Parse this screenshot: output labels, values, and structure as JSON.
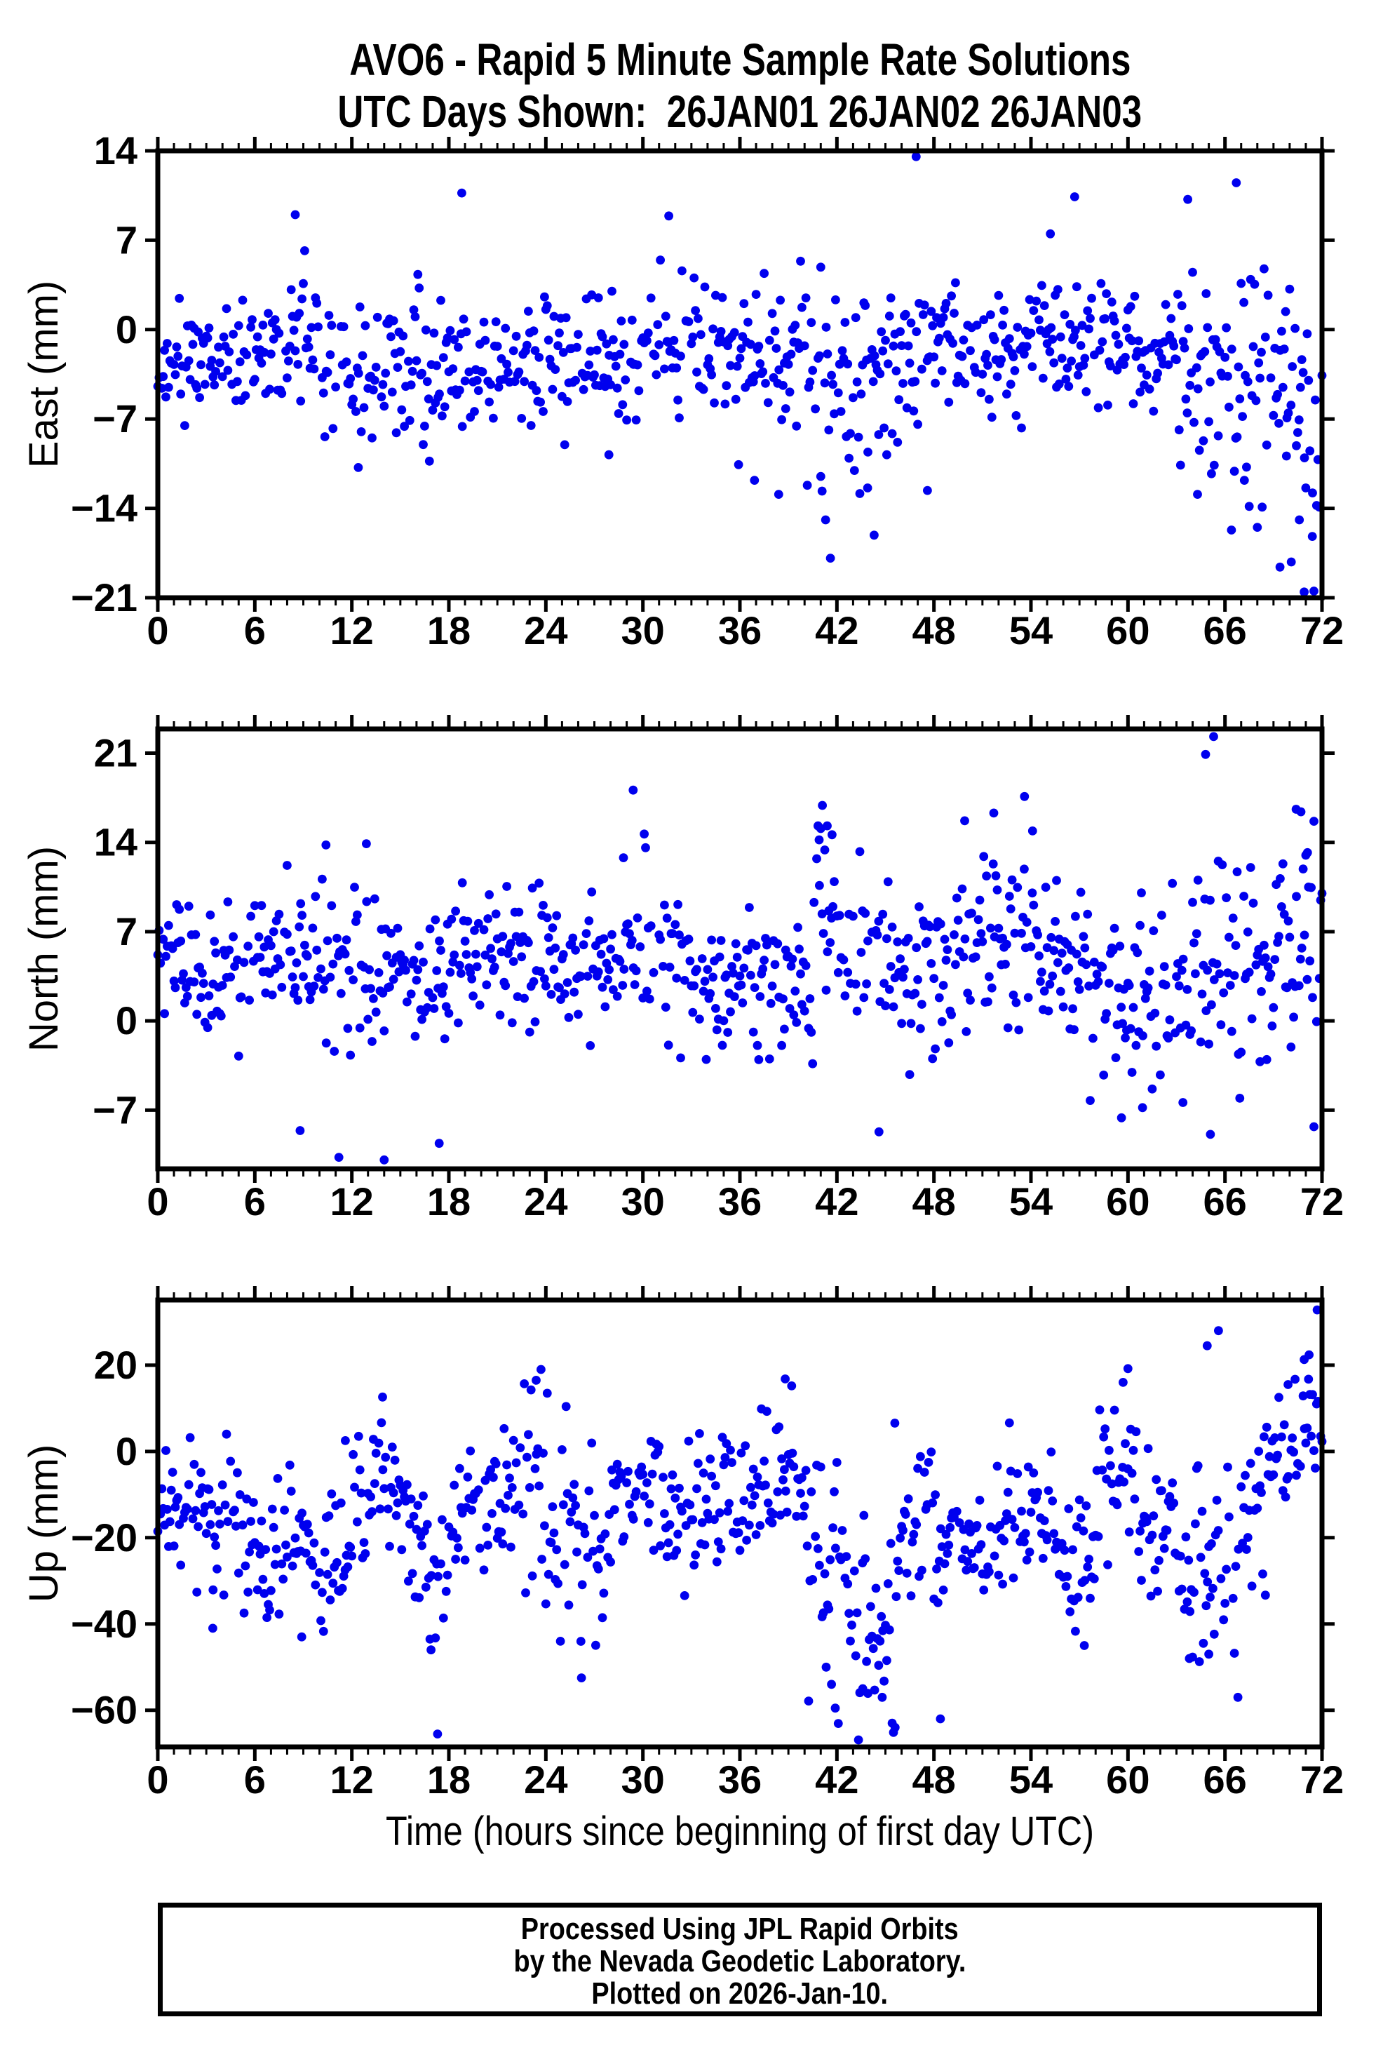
{
  "title": {
    "line1": "AVO6 - Rapid 5 Minute Sample Rate Solutions",
    "line2": "UTC Days Shown:  26JAN01 26JAN02 26JAN03"
  },
  "footer": {
    "line1": "Processed Using JPL Rapid Orbits",
    "line2": "by the Nevada Geodetic Laboratory.",
    "line3": "Plotted on 2026-Jan-10."
  },
  "style": {
    "point_color": "#0000ee",
    "axis_color": "#000000",
    "background": "#ffffff",
    "point_radius": 6.4
  },
  "station": "AVO6",
  "days_shown": [
    "26JAN01",
    "26JAN02",
    "26JAN03"
  ],
  "x_axis": {
    "title": "Time (hours since beginning of first day UTC)",
    "range": [
      0,
      72
    ],
    "major_tick_interval": 6,
    "minor_tick_interval": 1,
    "tick_labels": [
      0,
      6,
      12,
      18,
      24,
      30,
      36,
      42,
      48,
      54,
      60,
      66,
      72
    ]
  },
  "chart_data": [
    {
      "type": "scatter",
      "panel": "east",
      "ylabel": "East (mm)",
      "y_ticks": [
        14,
        7,
        0,
        -7,
        -14,
        -21
      ],
      "y_range": [
        -21,
        14
      ],
      "x_range": [
        0,
        72
      ],
      "sample_interval_hours": 0.083333,
      "gap_fraction": 0.1,
      "seed": 11,
      "summary": {
        "approx_mean": -2.3,
        "approx_sd": 2.8,
        "description": "5-min East offsets, mostly -8 to +5 mm; dips to -18 near hour 41-44; spread grows after hour 63 reaching -21"
      },
      "segments": [
        [
          0,
          8,
          -2.6,
          2.1
        ],
        [
          8,
          10,
          -0.8,
          2.6
        ],
        [
          10,
          13,
          -2.8,
          2.6
        ],
        [
          13,
          17,
          -3.8,
          2.8
        ],
        [
          17,
          20,
          -3.0,
          2.6
        ],
        [
          20,
          24,
          -2.6,
          2.4
        ],
        [
          24,
          27,
          -3.0,
          2.3
        ],
        [
          27,
          31,
          -1.8,
          2.6
        ],
        [
          31,
          34,
          -1.2,
          2.8
        ],
        [
          34,
          37,
          -2.6,
          2.3
        ],
        [
          37,
          40,
          -2.4,
          2.6
        ],
        [
          40,
          44,
          -4.2,
          4.2
        ],
        [
          44,
          46,
          -3.0,
          3.0
        ],
        [
          46,
          48,
          -1.8,
          2.8
        ],
        [
          48,
          52,
          -1.6,
          2.4
        ],
        [
          52,
          56,
          -1.4,
          2.6
        ],
        [
          56,
          60,
          -0.9,
          2.7
        ],
        [
          60,
          63,
          -1.6,
          2.4
        ],
        [
          63,
          67,
          -2.8,
          4.6
        ],
        [
          67,
          70,
          -3.5,
          5.5
        ],
        [
          70,
          72,
          -5.5,
          6.5
        ]
      ],
      "outliers": [
        [
          8.5,
          9.0
        ],
        [
          18.8,
          10.7
        ],
        [
          31.6,
          8.9
        ],
        [
          46.9,
          13.6
        ],
        [
          55.2,
          7.5
        ],
        [
          56.7,
          10.4
        ],
        [
          63.7,
          10.2
        ],
        [
          66.7,
          11.5
        ],
        [
          12.4,
          -10.8
        ],
        [
          16.8,
          -10.3
        ],
        [
          27.9,
          -9.8
        ],
        [
          36.9,
          -11.8
        ],
        [
          38.4,
          -12.9
        ],
        [
          41.0,
          -11.5
        ],
        [
          41.3,
          -14.9
        ],
        [
          41.6,
          -17.9
        ],
        [
          43.9,
          -12.4
        ],
        [
          44.3,
          -16.1
        ],
        [
          47.6,
          -12.6
        ],
        [
          64.3,
          -12.9
        ],
        [
          66.4,
          -15.7
        ],
        [
          68.3,
          -13.9
        ],
        [
          69.4,
          -18.6
        ],
        [
          70.1,
          -18.2
        ],
        [
          70.9,
          -20.7
        ],
        [
          71.4,
          -16.2
        ],
        [
          70.6,
          -14.9
        ],
        [
          69.8,
          -9.9
        ],
        [
          67.2,
          -11.8
        ]
      ]
    },
    {
      "type": "scatter",
      "panel": "north",
      "ylabel": "North (mm)",
      "y_ticks": [
        21,
        14,
        7,
        0,
        -7
      ],
      "y_range": [
        -11.6,
        22.9
      ],
      "x_range": [
        0,
        72
      ],
      "sample_interval_hours": 0.083333,
      "gap_fraction": 0.1,
      "seed": 22,
      "summary": {
        "approx_mean": 4.4,
        "approx_sd": 3.1,
        "description": "5-min North offsets, mostly -1 to +10 mm; spike cluster to ~17 near hour 41; highs to 22 near hour 65; lows to -11 near hours 11-18"
      },
      "segments": [
        [
          0,
          3,
          4.6,
          2.2
        ],
        [
          3,
          6,
          3.8,
          2.6
        ],
        [
          6,
          9,
          5.2,
          2.8
        ],
        [
          9,
          12,
          4.4,
          3.4
        ],
        [
          12,
          15,
          3.6,
          3.0
        ],
        [
          15,
          18,
          3.2,
          3.2
        ],
        [
          18,
          21,
          5.8,
          2.6
        ],
        [
          21,
          24,
          5.2,
          2.6
        ],
        [
          24,
          27,
          4.6,
          2.6
        ],
        [
          27,
          30,
          4.2,
          3.2
        ],
        [
          30,
          33,
          4.8,
          3.0
        ],
        [
          33,
          36,
          3.4,
          2.8
        ],
        [
          36,
          39,
          2.8,
          2.8
        ],
        [
          39,
          40.5,
          4.0,
          3.0
        ],
        [
          40.5,
          42,
          10.5,
          4.0
        ],
        [
          42,
          45,
          5.0,
          3.0
        ],
        [
          45,
          48,
          4.4,
          2.6
        ],
        [
          48,
          51,
          5.4,
          3.2
        ],
        [
          51,
          54,
          6.8,
          4.0
        ],
        [
          54,
          57,
          4.4,
          3.4
        ],
        [
          57,
          60,
          2.6,
          3.4
        ],
        [
          60,
          63,
          3.0,
          3.6
        ],
        [
          63,
          66,
          3.4,
          4.8
        ],
        [
          66,
          69,
          5.2,
          3.8
        ],
        [
          69,
          72,
          5.8,
          5.0
        ]
      ],
      "outliers": [
        [
          8.0,
          12.2
        ],
        [
          10.4,
          13.8
        ],
        [
          12.9,
          13.9
        ],
        [
          28.8,
          12.8
        ],
        [
          29.4,
          18.1
        ],
        [
          40.9,
          14.2
        ],
        [
          41.1,
          16.9
        ],
        [
          41.4,
          15.3
        ],
        [
          41.7,
          14.6
        ],
        [
          49.9,
          15.7
        ],
        [
          51.7,
          16.3
        ],
        [
          53.6,
          17.6
        ],
        [
          54.1,
          14.9
        ],
        [
          64.8,
          20.9
        ],
        [
          65.3,
          22.3
        ],
        [
          70.4,
          16.6
        ],
        [
          70.7,
          16.4
        ],
        [
          71.1,
          13.2
        ],
        [
          8.8,
          -8.6
        ],
        [
          11.2,
          -10.7
        ],
        [
          14.0,
          -10.9
        ],
        [
          17.4,
          -9.6
        ],
        [
          44.6,
          -8.7
        ],
        [
          59.6,
          -7.6
        ],
        [
          60.9,
          -6.8
        ],
        [
          65.1,
          -8.9
        ],
        [
          71.5,
          -8.3
        ],
        [
          63.4,
          -6.4
        ]
      ]
    },
    {
      "type": "scatter",
      "panel": "up",
      "ylabel": "Up (mm)",
      "y_ticks": [
        20,
        0,
        -20,
        -40,
        -60
      ],
      "y_range": [
        -68.5,
        35.1
      ],
      "x_range": [
        0,
        72
      ],
      "sample_interval_hours": 0.083333,
      "gap_fraction": 0.1,
      "seed": 33,
      "summary": {
        "approx_mean": -15,
        "approx_sd": 10,
        "description": "5-min Up offsets, mostly -40 to +5 mm; deep dips to -65 near hours 17 and 45; strong rise to +33 at the end of day 3"
      },
      "segments": [
        [
          0,
          3,
          -14,
          8
        ],
        [
          3,
          6,
          -17,
          8
        ],
        [
          6,
          9,
          -22,
          8
        ],
        [
          9,
          12,
          -26,
          8
        ],
        [
          12,
          15,
          -9,
          8
        ],
        [
          15,
          16.5,
          -18,
          9
        ],
        [
          16.5,
          18,
          -30,
          11
        ],
        [
          18,
          21,
          -14,
          8
        ],
        [
          21,
          24,
          -10,
          10
        ],
        [
          24,
          26,
          -18,
          11
        ],
        [
          26,
          28,
          -28,
          10
        ],
        [
          28,
          31,
          -9,
          7
        ],
        [
          31,
          34,
          -14,
          8
        ],
        [
          34,
          37,
          -12,
          8
        ],
        [
          37,
          40,
          -7,
          8
        ],
        [
          40,
          42.5,
          -25,
          12
        ],
        [
          42.5,
          45.5,
          -40,
          11
        ],
        [
          45.5,
          48,
          -18,
          11
        ],
        [
          48,
          52,
          -22,
          8
        ],
        [
          52,
          56,
          -19,
          8
        ],
        [
          56,
          58,
          -26,
          9
        ],
        [
          58,
          60.5,
          -6,
          8
        ],
        [
          60.5,
          63,
          -16,
          8
        ],
        [
          63,
          66,
          -30,
          13
        ],
        [
          66,
          68.5,
          -16,
          10
        ],
        [
          68.5,
          72,
          2,
          9
        ]
      ],
      "outliers": [
        [
          3.4,
          -41
        ],
        [
          8.9,
          -43
        ],
        [
          16.9,
          -46
        ],
        [
          17.3,
          -65.5
        ],
        [
          24.9,
          -44
        ],
        [
          26.2,
          -52.5
        ],
        [
          41.9,
          -59.5
        ],
        [
          43.6,
          -55
        ],
        [
          44.8,
          -57
        ],
        [
          45.6,
          -64
        ],
        [
          48.4,
          -62
        ],
        [
          57.3,
          -45
        ],
        [
          63.8,
          -48
        ],
        [
          65.0,
          -47
        ],
        [
          66.8,
          -57
        ],
        [
          11.6,
          2.5
        ],
        [
          13.9,
          12.6
        ],
        [
          23.4,
          16.5
        ],
        [
          23.7,
          19.0
        ],
        [
          38.8,
          16.8
        ],
        [
          39.2,
          15.2
        ],
        [
          59.7,
          16.0
        ],
        [
          60.0,
          19.2
        ],
        [
          64.9,
          24.5
        ],
        [
          65.6,
          28.0
        ],
        [
          69.9,
          15.5
        ],
        [
          70.9,
          21.3
        ],
        [
          71.2,
          22.4
        ],
        [
          71.7,
          32.8
        ]
      ]
    }
  ]
}
